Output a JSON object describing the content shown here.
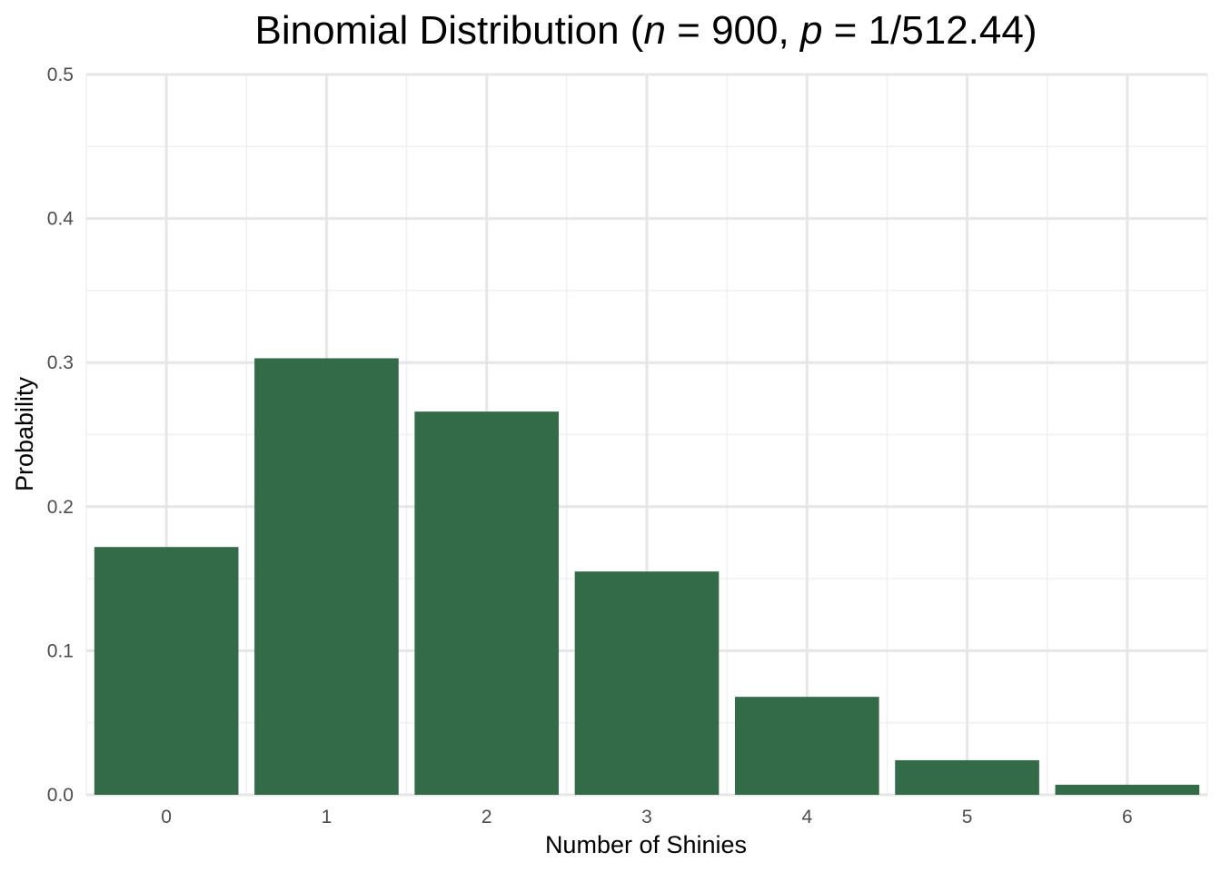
{
  "chart_data": {
    "type": "bar",
    "title_parts": {
      "prefix": "Binomial Distribution (",
      "n_symbol": "n",
      "n_value": " = 900, ",
      "p_symbol": "p",
      "p_value": " = 1/512.44)"
    },
    "xlabel": "Number of Shinies",
    "ylabel": "Probability",
    "categories": [
      "0",
      "1",
      "2",
      "3",
      "4",
      "5",
      "6"
    ],
    "values": [
      0.172,
      0.303,
      0.266,
      0.155,
      0.068,
      0.024,
      0.007
    ],
    "ylim": [
      0,
      0.5
    ],
    "yticks": [
      "0.0",
      "0.1",
      "0.2",
      "0.3",
      "0.4",
      "0.5"
    ],
    "ytick_values": [
      0,
      0.1,
      0.2,
      0.3,
      0.4,
      0.5
    ],
    "grid": true,
    "legend": "none",
    "bar_color": "#336b48",
    "grid_major_color": "#e6e6e6",
    "grid_minor_color": "#f0f0f0"
  }
}
